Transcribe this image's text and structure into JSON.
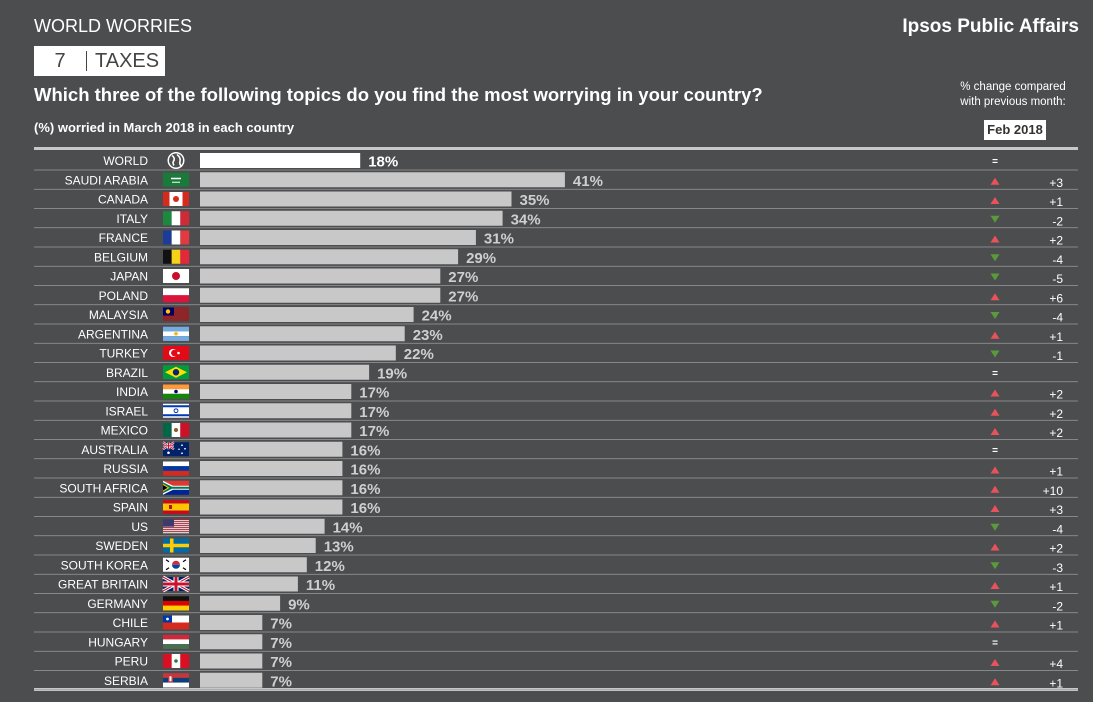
{
  "header": {
    "series": "WORLD WORRIES",
    "brand": "Ipsos Public Affairs",
    "rank": "7",
    "topic": "TAXES",
    "question": "Which three of the following topics do you find the most worrying in your country?",
    "subtitle": "(%) worried in March 2018 in each country",
    "change_label_line1": "% change compared",
    "change_label_line2": "with previous month:",
    "period": "Feb 2018"
  },
  "colors": {
    "background": "#4c4d4f",
    "world_bar": "#ffffff",
    "country_bar": "#c8c8c8",
    "up_arrow": "#e8525a",
    "down_arrow": "#5a9a3a"
  },
  "chart_data": {
    "type": "bar",
    "orientation": "horizontal",
    "xlim": [
      0,
      50
    ],
    "categories": [
      "WORLD",
      "SAUDI ARABIA",
      "CANADA",
      "ITALY",
      "FRANCE",
      "BELGIUM",
      "JAPAN",
      "POLAND",
      "MALAYSIA",
      "ARGENTINA",
      "TURKEY",
      "BRAZIL",
      "INDIA",
      "ISRAEL",
      "MEXICO",
      "AUSTRALIA",
      "RUSSIA",
      "SOUTH AFRICA",
      "SPAIN",
      "US",
      "SWEDEN",
      "SOUTH KOREA",
      "GREAT BRITAIN",
      "GERMANY",
      "CHILE",
      "HUNGARY",
      "PERU",
      "SERBIA"
    ],
    "values": [
      18,
      41,
      35,
      34,
      31,
      29,
      27,
      27,
      24,
      23,
      22,
      19,
      17,
      17,
      17,
      16,
      16,
      16,
      16,
      14,
      13,
      12,
      11,
      9,
      7,
      7,
      7,
      7
    ],
    "value_labels": [
      "18%",
      "41%",
      "35%",
      "34%",
      "31%",
      "29%",
      "27%",
      "27%",
      "24%",
      "23%",
      "22%",
      "19%",
      "17%",
      "17%",
      "17%",
      "16%",
      "16%",
      "16%",
      "16%",
      "14%",
      "13%",
      "12%",
      "11%",
      "9%",
      "7%",
      "7%",
      "7%",
      "7%"
    ],
    "change_direction": [
      "eq",
      "up",
      "up",
      "down",
      "up",
      "down",
      "down",
      "up",
      "down",
      "up",
      "down",
      "eq",
      "up",
      "up",
      "up",
      "eq",
      "up",
      "up",
      "up",
      "down",
      "up",
      "down",
      "up",
      "down",
      "up",
      "eq",
      "up",
      "up"
    ],
    "change_labels": [
      "=",
      "+3",
      "+1",
      "-2",
      "+2",
      "-4",
      "-5",
      "+6",
      "-4",
      "+1",
      "-1",
      "=",
      "+2",
      "+2",
      "+2",
      "=",
      "+1",
      "+10",
      "+3",
      "-4",
      "+2",
      "-3",
      "+1",
      "-2",
      "+1",
      "=",
      "+4",
      "+1"
    ],
    "flags": [
      "globe",
      "sa",
      "ca",
      "it",
      "fr",
      "be",
      "jp",
      "pl",
      "my",
      "ar",
      "tr",
      "br",
      "in",
      "il",
      "mx",
      "au",
      "ru",
      "za",
      "es",
      "us",
      "se",
      "kr",
      "gb",
      "de",
      "cl",
      "hu",
      "pe",
      "rs"
    ]
  }
}
